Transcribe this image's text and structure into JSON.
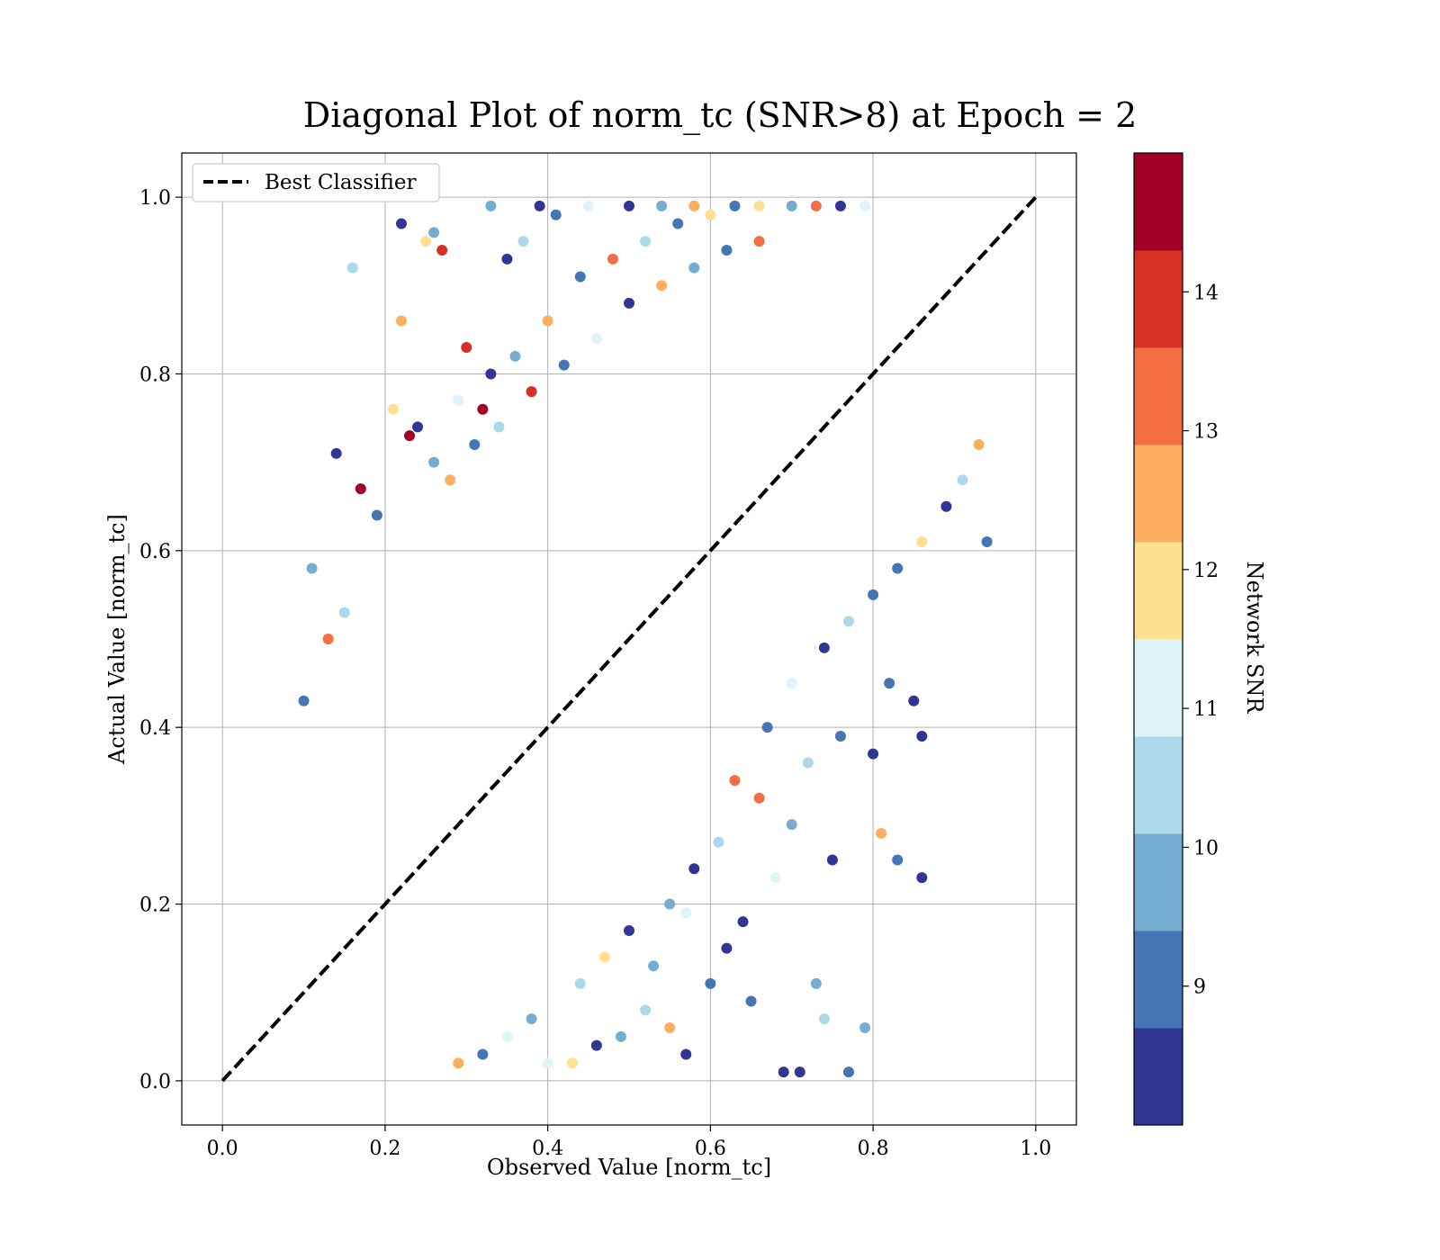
{
  "chart_data": {
    "type": "scatter",
    "title": "Diagonal Plot of norm_tc (SNR>8) at Epoch = 2",
    "xlabel": "Observed Value [norm_tc]",
    "ylabel": "Actual Value [norm_tc]",
    "xlim": [
      -0.05,
      1.05
    ],
    "ylim": [
      -0.05,
      1.05
    ],
    "xticks": [
      0.0,
      0.2,
      0.4,
      0.6,
      0.8,
      1.0
    ],
    "yticks": [
      0.0,
      0.2,
      0.4,
      0.6,
      0.8,
      1.0
    ],
    "xtick_labels": [
      "0.0",
      "0.2",
      "0.4",
      "0.6",
      "0.8",
      "1.0"
    ],
    "ytick_labels": [
      "0.0",
      "0.2",
      "0.4",
      "0.6",
      "0.8",
      "1.0"
    ],
    "grid": true,
    "legend": {
      "placement": "upper-left",
      "entries": [
        "Best Classifier"
      ]
    },
    "reference_line": {
      "name": "Best Classifier",
      "x": [
        0.0,
        1.0
      ],
      "y": [
        0.0,
        1.0
      ],
      "style": "dashed",
      "color": "#000000"
    },
    "colorbar": {
      "label": "Network SNR",
      "range": [
        8,
        15
      ],
      "bins": [
        {
          "from": 8.0,
          "to": 8.7,
          "color": "#313695"
        },
        {
          "from": 8.7,
          "to": 9.4,
          "color": "#4575b4"
        },
        {
          "from": 9.4,
          "to": 10.1,
          "color": "#74add1"
        },
        {
          "from": 10.1,
          "to": 10.8,
          "color": "#abd9e9"
        },
        {
          "from": 10.8,
          "to": 11.5,
          "color": "#e0f3f8"
        },
        {
          "from": 11.5,
          "to": 12.2,
          "color": "#fee090"
        },
        {
          "from": 12.2,
          "to": 12.9,
          "color": "#fdae61"
        },
        {
          "from": 12.9,
          "to": 13.6,
          "color": "#f46d43"
        },
        {
          "from": 13.6,
          "to": 14.3,
          "color": "#d73027"
        },
        {
          "from": 14.3,
          "to": 15.0,
          "color": "#a50026"
        }
      ],
      "ticks": [
        9,
        10,
        11,
        12,
        13,
        14
      ],
      "tick_labels": [
        "9",
        "10",
        "11",
        "12",
        "13",
        "14"
      ]
    },
    "points": [
      {
        "x": 0.16,
        "y": 0.92,
        "snr": 10.4
      },
      {
        "x": 0.22,
        "y": 0.97,
        "snr": 8.2
      },
      {
        "x": 0.26,
        "y": 0.96,
        "snr": 9.7
      },
      {
        "x": 0.27,
        "y": 0.94,
        "snr": 13.8
      },
      {
        "x": 0.25,
        "y": 0.95,
        "snr": 11.9
      },
      {
        "x": 0.22,
        "y": 0.86,
        "snr": 12.4
      },
      {
        "x": 0.14,
        "y": 0.71,
        "snr": 8.3
      },
      {
        "x": 0.17,
        "y": 0.67,
        "snr": 14.6
      },
      {
        "x": 0.19,
        "y": 0.64,
        "snr": 9.1
      },
      {
        "x": 0.11,
        "y": 0.58,
        "snr": 9.9
      },
      {
        "x": 0.13,
        "y": 0.5,
        "snr": 13.1
      },
      {
        "x": 0.15,
        "y": 0.53,
        "snr": 10.6
      },
      {
        "x": 0.1,
        "y": 0.43,
        "snr": 9.2
      },
      {
        "x": 0.21,
        "y": 0.76,
        "snr": 11.8
      },
      {
        "x": 0.23,
        "y": 0.73,
        "snr": 14.4
      },
      {
        "x": 0.24,
        "y": 0.74,
        "snr": 8.1
      },
      {
        "x": 0.3,
        "y": 0.83,
        "snr": 13.9
      },
      {
        "x": 0.33,
        "y": 0.99,
        "snr": 9.6
      },
      {
        "x": 0.35,
        "y": 0.93,
        "snr": 8.4
      },
      {
        "x": 0.37,
        "y": 0.95,
        "snr": 10.5
      },
      {
        "x": 0.39,
        "y": 0.99,
        "snr": 8.6
      },
      {
        "x": 0.41,
        "y": 0.98,
        "snr": 9.0
      },
      {
        "x": 0.45,
        "y": 0.99,
        "snr": 11.2
      },
      {
        "x": 0.5,
        "y": 0.99,
        "snr": 8.2
      },
      {
        "x": 0.54,
        "y": 0.99,
        "snr": 9.5
      },
      {
        "x": 0.58,
        "y": 0.99,
        "snr": 12.5
      },
      {
        "x": 0.44,
        "y": 0.91,
        "snr": 8.9
      },
      {
        "x": 0.48,
        "y": 0.93,
        "snr": 13.2
      },
      {
        "x": 0.52,
        "y": 0.95,
        "snr": 10.2
      },
      {
        "x": 0.56,
        "y": 0.97,
        "snr": 9.3
      },
      {
        "x": 0.6,
        "y": 0.98,
        "snr": 11.6
      },
      {
        "x": 0.63,
        "y": 0.99,
        "snr": 8.7
      },
      {
        "x": 0.66,
        "y": 0.99,
        "snr": 12.1
      },
      {
        "x": 0.7,
        "y": 0.99,
        "snr": 9.8
      },
      {
        "x": 0.73,
        "y": 0.99,
        "snr": 13.4
      },
      {
        "x": 0.76,
        "y": 0.99,
        "snr": 8.5
      },
      {
        "x": 0.79,
        "y": 0.99,
        "snr": 10.9
      },
      {
        "x": 0.4,
        "y": 0.86,
        "snr": 12.8
      },
      {
        "x": 0.36,
        "y": 0.82,
        "snr": 9.4
      },
      {
        "x": 0.33,
        "y": 0.8,
        "snr": 8.3
      },
      {
        "x": 0.29,
        "y": 0.77,
        "snr": 11.1
      },
      {
        "x": 0.32,
        "y": 0.76,
        "snr": 14.5
      },
      {
        "x": 0.26,
        "y": 0.7,
        "snr": 9.7
      },
      {
        "x": 0.28,
        "y": 0.68,
        "snr": 12.3
      },
      {
        "x": 0.31,
        "y": 0.72,
        "snr": 8.8
      },
      {
        "x": 0.34,
        "y": 0.74,
        "snr": 10.3
      },
      {
        "x": 0.38,
        "y": 0.78,
        "snr": 13.6
      },
      {
        "x": 0.42,
        "y": 0.81,
        "snr": 9.1
      },
      {
        "x": 0.46,
        "y": 0.84,
        "snr": 11.4
      },
      {
        "x": 0.5,
        "y": 0.88,
        "snr": 8.6
      },
      {
        "x": 0.54,
        "y": 0.9,
        "snr": 12.7
      },
      {
        "x": 0.58,
        "y": 0.92,
        "snr": 10.0
      },
      {
        "x": 0.62,
        "y": 0.94,
        "snr": 9.2
      },
      {
        "x": 0.66,
        "y": 0.95,
        "snr": 13.0
      },
      {
        "x": 0.85,
        "y": 0.43,
        "snr": 8.4
      },
      {
        "x": 0.86,
        "y": 0.39,
        "snr": 8.2
      },
      {
        "x": 0.8,
        "y": 0.37,
        "snr": 8.6
      },
      {
        "x": 0.82,
        "y": 0.45,
        "snr": 8.9
      },
      {
        "x": 0.86,
        "y": 0.23,
        "snr": 8.3
      },
      {
        "x": 0.83,
        "y": 0.25,
        "snr": 9.3
      },
      {
        "x": 0.81,
        "y": 0.28,
        "snr": 12.6
      },
      {
        "x": 0.75,
        "y": 0.25,
        "snr": 8.2
      },
      {
        "x": 0.73,
        "y": 0.11,
        "snr": 9.6
      },
      {
        "x": 0.74,
        "y": 0.07,
        "snr": 10.4
      },
      {
        "x": 0.79,
        "y": 0.06,
        "snr": 9.4
      },
      {
        "x": 0.77,
        "y": 0.01,
        "snr": 9.0
      },
      {
        "x": 0.71,
        "y": 0.01,
        "snr": 8.3
      },
      {
        "x": 0.69,
        "y": 0.01,
        "snr": 8.5
      },
      {
        "x": 0.65,
        "y": 0.09,
        "snr": 8.8
      },
      {
        "x": 0.68,
        "y": 0.23,
        "snr": 11.2
      },
      {
        "x": 0.7,
        "y": 0.29,
        "snr": 9.9
      },
      {
        "x": 0.76,
        "y": 0.39,
        "snr": 8.7
      },
      {
        "x": 0.72,
        "y": 0.36,
        "snr": 10.6
      },
      {
        "x": 0.66,
        "y": 0.32,
        "snr": 13.0
      },
      {
        "x": 0.62,
        "y": 0.15,
        "snr": 8.4
      },
      {
        "x": 0.64,
        "y": 0.18,
        "snr": 8.2
      },
      {
        "x": 0.6,
        "y": 0.11,
        "snr": 9.1
      },
      {
        "x": 0.57,
        "y": 0.03,
        "snr": 8.6
      },
      {
        "x": 0.55,
        "y": 0.06,
        "snr": 12.2
      },
      {
        "x": 0.52,
        "y": 0.08,
        "snr": 10.2
      },
      {
        "x": 0.49,
        "y": 0.05,
        "snr": 9.5
      },
      {
        "x": 0.46,
        "y": 0.04,
        "snr": 8.3
      },
      {
        "x": 0.43,
        "y": 0.02,
        "snr": 11.6
      },
      {
        "x": 0.4,
        "y": 0.02,
        "snr": 10.8
      },
      {
        "x": 0.55,
        "y": 0.2,
        "snr": 9.7
      },
      {
        "x": 0.58,
        "y": 0.24,
        "snr": 8.1
      },
      {
        "x": 0.61,
        "y": 0.27,
        "snr": 10.1
      },
      {
        "x": 0.63,
        "y": 0.34,
        "snr": 12.9
      },
      {
        "x": 0.67,
        "y": 0.4,
        "snr": 9.3
      },
      {
        "x": 0.7,
        "y": 0.45,
        "snr": 11.4
      },
      {
        "x": 0.74,
        "y": 0.49,
        "snr": 8.5
      },
      {
        "x": 0.77,
        "y": 0.52,
        "snr": 10.7
      },
      {
        "x": 0.8,
        "y": 0.55,
        "snr": 9.0
      },
      {
        "x": 0.83,
        "y": 0.58,
        "snr": 8.8
      },
      {
        "x": 0.86,
        "y": 0.61,
        "snr": 11.9
      },
      {
        "x": 0.89,
        "y": 0.65,
        "snr": 8.2
      },
      {
        "x": 0.91,
        "y": 0.68,
        "snr": 10.3
      },
      {
        "x": 0.93,
        "y": 0.72,
        "snr": 12.4
      },
      {
        "x": 0.94,
        "y": 0.61,
        "snr": 8.9
      },
      {
        "x": 0.47,
        "y": 0.14,
        "snr": 12.0
      },
      {
        "x": 0.44,
        "y": 0.11,
        "snr": 10.5
      },
      {
        "x": 0.38,
        "y": 0.07,
        "snr": 9.8
      },
      {
        "x": 0.35,
        "y": 0.05,
        "snr": 11.3
      },
      {
        "x": 0.32,
        "y": 0.03,
        "snr": 8.7
      },
      {
        "x": 0.29,
        "y": 0.02,
        "snr": 12.6
      },
      {
        "x": 0.5,
        "y": 0.17,
        "snr": 8.4
      },
      {
        "x": 0.53,
        "y": 0.13,
        "snr": 9.6
      },
      {
        "x": 0.57,
        "y": 0.19,
        "snr": 10.9
      }
    ]
  }
}
